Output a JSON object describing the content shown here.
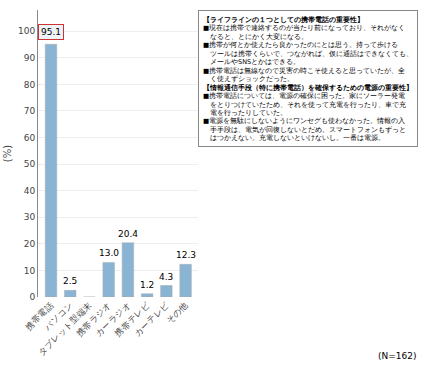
{
  "chart_data": {
    "type": "bar",
    "categories": [
      "携帯電話",
      "パソコン",
      "タブレット型端末",
      "携帯ラジオ",
      "カーラジオ",
      "携帯テレビ",
      "カーテレビ",
      "その他"
    ],
    "values": [
      95.1,
      2.5,
      0.0,
      13.0,
      20.4,
      1.2,
      4.3,
      12.3
    ],
    "value_labels": [
      "95.1",
      "2.5",
      null,
      "13.0",
      "20.4",
      "1.2",
      "4.3",
      "12.3"
    ],
    "data_labels": true,
    "color": "#8ab4d4",
    "ylabel": "(%)",
    "ylim": [
      0,
      108
    ],
    "yticks": [
      0,
      10,
      20,
      30,
      40,
      50,
      60,
      70,
      80,
      90,
      100
    ],
    "grid": true,
    "footnote": "(N=162)",
    "annotations": [
      "【ライフラインの１つとしての携帯電話の重要性】",
      "■現在は携帯で連絡するのが当たり前になっており、それがなく",
      "　なると、とにかく大変になる。",
      "■携帯が何とか使えたら良かったのにとは思う。持って歩ける",
      "　ツールは携帯くらいで、つながれば、仮に通話はできなくても、",
      "　メールやSNSとかはできる。",
      "■携帯電話は無線なので災害の時こそ使えると思っていたが、全",
      "　く使えずショックだった。",
      "【情報通信手段（特に携帯電話）を確保するための電源の重要性】",
      "■携帯電話については、電源の確保に困った。家にソーラー発電",
      "　をとりつけていたため、それを使って充電を行ったり、車で充",
      "　電を行ったりしていた。",
      "■電源を無駄にしないようにワンセグも使わなかった。情報の入",
      "　手手段は、電気が回復しないとだめ。スマートフォンもずっと",
      "　はつかえない。充電しないといけないし。一番は電源。"
    ]
  }
}
